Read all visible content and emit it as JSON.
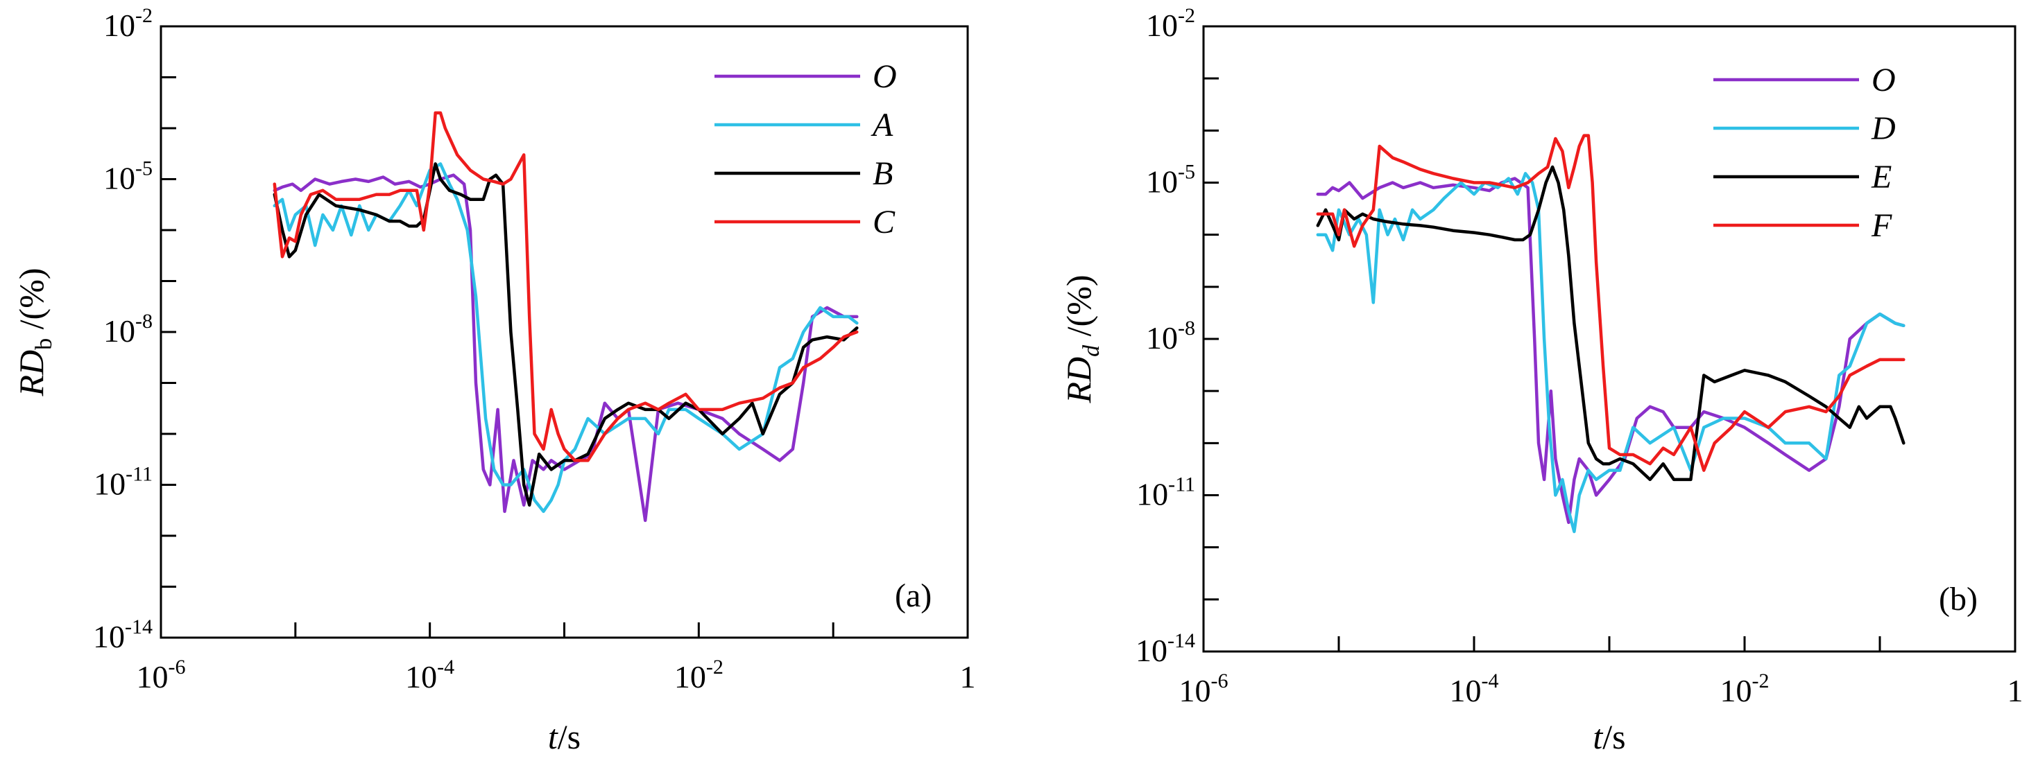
{
  "chart_data": [
    {
      "type": "line",
      "panel_label": "(a)",
      "xscale": "log",
      "yscale": "log",
      "xlim": [
        1e-06,
        1
      ],
      "ylim": [
        1e-14,
        0.01
      ],
      "xlabel": {
        "main": "t",
        "unit": "/s"
      },
      "ylabel": {
        "main": "RD",
        "sub": "b",
        "unit": " /(%)"
      },
      "xticks": [
        {
          "base": "10",
          "exp": "-6"
        },
        {
          "base": "10",
          "exp": "-4"
        },
        {
          "base": "10",
          "exp": "-2"
        },
        {
          "base": "1",
          "exp": ""
        }
      ],
      "yticks": [
        {
          "base": "10",
          "exp": "-14"
        },
        {
          "base": "10",
          "exp": "-11"
        },
        {
          "base": "10",
          "exp": "-8"
        },
        {
          "base": "10",
          "exp": "-5"
        },
        {
          "base": "10",
          "exp": "-2"
        }
      ],
      "legend_position": "top-right",
      "series": [
        {
          "name": "O",
          "color": "#8b2fc9",
          "x": [
            7e-06,
            8e-06,
            9.5e-06,
            1.1e-05,
            1.4e-05,
            1.8e-05,
            2.2e-05,
            2.8e-05,
            3.5e-05,
            4.5e-05,
            5.5e-05,
            7e-05,
            8.5e-05,
            0.0001,
            0.00012,
            0.00015,
            0.00018,
            0.0002,
            0.00022,
            0.00025,
            0.00028,
            0.00032,
            0.00036,
            0.00042,
            0.0005,
            0.00058,
            0.0007,
            0.0008,
            0.001,
            0.0013,
            0.0016,
            0.002,
            0.0025,
            0.003,
            0.004,
            0.005,
            0.007,
            0.01,
            0.015,
            0.02,
            0.03,
            0.04,
            0.05,
            0.06,
            0.07,
            0.09,
            0.12,
            0.15
          ],
          "y": [
            6e-06,
            7e-06,
            8e-06,
            6e-06,
            1e-05,
            8e-06,
            9e-06,
            1e-05,
            9e-06,
            1.1e-05,
            8e-06,
            9e-06,
            7e-06,
            8e-06,
            1e-05,
            1.2e-05,
            8e-06,
            1e-06,
            1e-09,
            2e-11,
            1e-11,
            3e-10,
            3e-12,
            3e-11,
            4e-12,
            3e-11,
            2e-11,
            3e-11,
            2e-11,
            3e-11,
            4e-11,
            4e-10,
            2e-10,
            3e-10,
            2e-12,
            3e-10,
            4e-10,
            3e-10,
            2e-10,
            1e-10,
            5e-11,
            3e-11,
            5e-11,
            1e-09,
            2e-08,
            3e-08,
            2e-08,
            2e-08
          ]
        },
        {
          "name": "A",
          "color": "#2ec0e6",
          "x": [
            7e-06,
            8e-06,
            9e-06,
            1e-05,
            1.2e-05,
            1.4e-05,
            1.6e-05,
            1.9e-05,
            2.2e-05,
            2.6e-05,
            3e-05,
            3.5e-05,
            4e-05,
            5e-05,
            6e-05,
            7e-05,
            8e-05,
            0.0001,
            0.00012,
            0.00014,
            0.00016,
            0.00019,
            0.00022,
            0.00026,
            0.0003,
            0.00035,
            0.0004,
            0.0005,
            0.0006,
            0.0007,
            0.0008,
            0.0009,
            0.001,
            0.0012,
            0.0015,
            0.002,
            0.003,
            0.004,
            0.005,
            0.006,
            0.008,
            0.01,
            0.015,
            0.02,
            0.03,
            0.04,
            0.05,
            0.06,
            0.08,
            0.1,
            0.13,
            0.15
          ],
          "y": [
            3e-06,
            4e-06,
            1e-06,
            2e-06,
            3e-06,
            5e-07,
            2e-06,
            1e-06,
            3e-06,
            8e-07,
            3e-06,
            1e-06,
            2e-06,
            1.5e-06,
            3e-06,
            6e-06,
            3e-06,
            1.5e-05,
            2e-05,
            8e-06,
            4e-06,
            1e-06,
            5e-08,
            2e-10,
            2e-11,
            1e-11,
            1e-11,
            2e-11,
            5e-12,
            3e-12,
            5e-12,
            1e-11,
            3e-11,
            5e-11,
            2e-10,
            1e-10,
            2e-10,
            2e-10,
            1e-10,
            3e-10,
            3e-10,
            2e-10,
            1e-10,
            5e-11,
            1e-10,
            2e-09,
            3e-09,
            1e-08,
            3e-08,
            2e-08,
            2e-08,
            1.5e-08
          ]
        },
        {
          "name": "B",
          "color": "#000000",
          "x": [
            7e-06,
            8e-06,
            9e-06,
            1e-05,
            1.2e-05,
            1.5e-05,
            2e-05,
            3e-05,
            4e-05,
            5e-05,
            6e-05,
            7e-05,
            8e-05,
            9e-05,
            0.0001,
            0.00011,
            0.00012,
            0.00014,
            0.00017,
            0.0002,
            0.00025,
            0.00028,
            0.00031,
            0.00035,
            0.0004,
            0.00045,
            0.0005,
            0.00055,
            0.00065,
            0.0008,
            0.001,
            0.0012,
            0.0015,
            0.002,
            0.0025,
            0.003,
            0.004,
            0.005,
            0.006,
            0.008,
            0.01,
            0.015,
            0.02,
            0.025,
            0.03,
            0.04,
            0.05,
            0.06,
            0.07,
            0.09,
            0.12,
            0.15
          ],
          "y": [
            5e-06,
            1e-06,
            3e-07,
            4e-07,
            2e-06,
            5e-06,
            3e-06,
            2.5e-06,
            2e-06,
            1.5e-06,
            1.5e-06,
            1.2e-06,
            1.2e-06,
            1.6e-06,
            6e-06,
            2e-05,
            1e-05,
            6e-06,
            5e-06,
            4e-06,
            4e-06,
            1e-05,
            1.2e-05,
            8e-06,
            1e-08,
            3e-10,
            1e-11,
            4e-12,
            4e-11,
            2e-11,
            3e-11,
            3e-11,
            4e-11,
            2e-10,
            3e-10,
            4e-10,
            3e-10,
            3e-10,
            2e-10,
            4e-10,
            3e-10,
            1e-10,
            2e-10,
            4e-10,
            1e-10,
            6e-10,
            1e-09,
            5e-09,
            7e-09,
            8e-09,
            7e-09,
            1.2e-08
          ]
        },
        {
          "name": "C",
          "color": "#ee1c1c",
          "x": [
            7e-06,
            8e-06,
            9e-06,
            1e-05,
            1.1e-05,
            1.3e-05,
            1.6e-05,
            2e-05,
            2.5e-05,
            3e-05,
            4e-05,
            5e-05,
            6e-05,
            8e-05,
            9e-05,
            0.0001,
            0.00011,
            0.00012,
            0.00013,
            0.00016,
            0.0002,
            0.00025,
            0.0003,
            0.00035,
            0.0004,
            0.0005,
            0.00055,
            0.0006,
            0.0007,
            0.0008,
            0.0009,
            0.001,
            0.0012,
            0.0015,
            0.002,
            0.0025,
            0.003,
            0.004,
            0.005,
            0.006,
            0.008,
            0.01,
            0.015,
            0.02,
            0.03,
            0.04,
            0.05,
            0.06,
            0.08,
            0.1,
            0.12,
            0.15
          ],
          "y": [
            8e-06,
            3e-07,
            7e-07,
            6e-07,
            2e-06,
            5e-06,
            6e-06,
            4e-06,
            4e-06,
            4e-06,
            5e-06,
            5e-06,
            6e-06,
            6e-06,
            1e-06,
            8e-06,
            0.0002,
            0.0002,
            0.0001,
            3e-05,
            1.5e-05,
            1e-05,
            9e-06,
            8e-06,
            1e-05,
            3e-05,
            2e-08,
            1e-10,
            5e-11,
            3e-10,
            1e-10,
            5e-11,
            3e-11,
            3e-11,
            1e-10,
            2e-10,
            3e-10,
            4e-10,
            3e-10,
            4e-10,
            6e-10,
            3e-10,
            3e-10,
            4e-10,
            5e-10,
            8e-10,
            1e-09,
            2e-09,
            3e-09,
            5e-09,
            8e-09,
            1e-08
          ]
        }
      ]
    },
    {
      "type": "line",
      "panel_label": "(b)",
      "xscale": "log",
      "yscale": "log",
      "xlim": [
        1e-06,
        1
      ],
      "ylim": [
        1e-14,
        0.01
      ],
      "xlabel": {
        "main": "t",
        "unit": "/s"
      },
      "ylabel": {
        "main": "RD",
        "sub": "d",
        "unit": " /(%)"
      },
      "xticks": [
        {
          "base": "10",
          "exp": "-6"
        },
        {
          "base": "10",
          "exp": "-4"
        },
        {
          "base": "10",
          "exp": "-2"
        },
        {
          "base": "1",
          "exp": ""
        }
      ],
      "yticks": [
        {
          "base": "10",
          "exp": "-14"
        },
        {
          "base": "10",
          "exp": "-11"
        },
        {
          "base": "10",
          "exp": "-8"
        },
        {
          "base": "10",
          "exp": "-5"
        },
        {
          "base": "10",
          "exp": "-2"
        }
      ],
      "legend_position": "top-right",
      "series": [
        {
          "name": "O",
          "color": "#8b2fc9",
          "x": [
            7e-06,
            8e-06,
            9e-06,
            1e-05,
            1.2e-05,
            1.5e-05,
            2e-05,
            2.5e-05,
            3e-05,
            4e-05,
            5e-05,
            7e-05,
            0.0001,
            0.00013,
            0.00016,
            0.0002,
            0.00025,
            0.00028,
            0.0003,
            0.00033,
            0.00037,
            0.0004,
            0.00045,
            0.0005,
            0.00055,
            0.0006,
            0.0007,
            0.0008,
            0.001,
            0.0013,
            0.0016,
            0.002,
            0.0025,
            0.003,
            0.004,
            0.005,
            0.007,
            0.01,
            0.015,
            0.02,
            0.03,
            0.04,
            0.05,
            0.06,
            0.08,
            0.1,
            0.13,
            0.15
          ],
          "y": [
            6e-06,
            6e-06,
            8e-06,
            7e-06,
            1e-05,
            5e-06,
            8e-06,
            1e-05,
            8e-06,
            1e-05,
            8e-06,
            9e-06,
            8e-06,
            7e-06,
            1e-05,
            1.2e-05,
            8e-06,
            1e-08,
            1e-10,
            2e-11,
            1e-09,
            5e-11,
            1e-11,
            3e-12,
            2e-11,
            5e-11,
            3e-11,
            1e-11,
            2e-11,
            5e-11,
            3e-10,
            5e-10,
            4e-10,
            2e-10,
            2e-10,
            4e-10,
            3e-10,
            2e-10,
            1e-10,
            6e-11,
            3e-11,
            5e-11,
            5e-10,
            1e-08,
            2e-08,
            3e-08,
            2e-08,
            1.8e-08
          ]
        },
        {
          "name": "D",
          "color": "#2ec0e6",
          "x": [
            7e-06,
            8e-06,
            9e-06,
            1e-05,
            1.2e-05,
            1.4e-05,
            1.6e-05,
            1.8e-05,
            2e-05,
            2.3e-05,
            2.6e-05,
            3e-05,
            3.5e-05,
            4e-05,
            5e-05,
            6e-05,
            8e-05,
            0.0001,
            0.00012,
            0.00015,
            0.00018,
            0.00021,
            0.00024,
            0.00027,
            0.0003,
            0.00033,
            0.00036,
            0.0004,
            0.00045,
            0.0005,
            0.00055,
            0.0006,
            0.0007,
            0.0008,
            0.001,
            0.0012,
            0.0015,
            0.002,
            0.003,
            0.004,
            0.005,
            0.007,
            0.01,
            0.015,
            0.02,
            0.03,
            0.04,
            0.05,
            0.06,
            0.08,
            0.1,
            0.13,
            0.15
          ],
          "y": [
            1e-06,
            1e-06,
            5e-07,
            3e-06,
            1e-06,
            2e-06,
            1e-06,
            5e-08,
            3e-06,
            1e-06,
            2e-06,
            8e-07,
            3e-06,
            2e-06,
            3e-06,
            5e-06,
            1e-05,
            6e-06,
            1e-05,
            8e-06,
            1.2e-05,
            6e-06,
            1.5e-05,
            1e-05,
            3e-06,
            1e-08,
            2e-10,
            1e-11,
            2e-11,
            5e-12,
            2e-12,
            1e-11,
            3e-11,
            2e-11,
            3e-11,
            3e-11,
            2e-10,
            1e-10,
            2e-10,
            3e-11,
            2e-10,
            3e-10,
            3e-10,
            2e-10,
            1e-10,
            1e-10,
            5e-11,
            2e-09,
            3e-09,
            2e-08,
            3e-08,
            2e-08,
            1.8e-08
          ]
        },
        {
          "name": "E",
          "color": "#000000",
          "x": [
            7e-06,
            8e-06,
            9e-06,
            1e-05,
            1.1e-05,
            1.3e-05,
            1.5e-05,
            1.8e-05,
            2.2e-05,
            3e-05,
            4e-05,
            5e-05,
            7e-05,
            0.0001,
            0.00013,
            0.00016,
            0.0002,
            0.00023,
            0.00026,
            0.0003,
            0.00034,
            0.00038,
            0.00042,
            0.00046,
            0.0005,
            0.00055,
            0.0006,
            0.0007,
            0.0008,
            0.0009,
            0.001,
            0.0012,
            0.0015,
            0.002,
            0.0025,
            0.003,
            0.004,
            0.005,
            0.006,
            0.008,
            0.01,
            0.015,
            0.02,
            0.03,
            0.04,
            0.05,
            0.06,
            0.07,
            0.08,
            0.1,
            0.12,
            0.13,
            0.15
          ],
          "y": [
            1.5e-06,
            3e-06,
            1.5e-06,
            8e-07,
            3e-06,
            2e-06,
            2.5e-06,
            2e-06,
            1.8e-06,
            1.6e-06,
            1.5e-06,
            1.4e-06,
            1.2e-06,
            1.1e-06,
            1e-06,
            9e-07,
            8e-07,
            8e-07,
            1e-06,
            3e-06,
            1e-05,
            2e-05,
            1e-05,
            3e-06,
            4e-07,
            2e-08,
            3e-09,
            1e-10,
            5e-11,
            4e-11,
            4e-11,
            5e-11,
            4e-11,
            2e-11,
            4e-11,
            2e-11,
            2e-11,
            2e-09,
            1.5e-09,
            2e-09,
            2.5e-09,
            2e-09,
            1.5e-09,
            8e-10,
            5e-10,
            3e-10,
            2e-10,
            5e-10,
            3e-10,
            5e-10,
            5e-10,
            3e-10,
            1e-10
          ]
        },
        {
          "name": "F",
          "color": "#ee1c1c",
          "x": [
            7e-06,
            8e-06,
            9e-06,
            1e-05,
            1.1e-05,
            1.3e-05,
            1.5e-05,
            1.8e-05,
            2e-05,
            2.5e-05,
            3e-05,
            4e-05,
            5e-05,
            7e-05,
            0.0001,
            0.00013,
            0.00016,
            0.0002,
            0.00025,
            0.0003,
            0.00035,
            0.0004,
            0.00045,
            0.0005,
            0.00055,
            0.0006,
            0.00065,
            0.0007,
            0.00075,
            0.0008,
            0.0009,
            0.001,
            0.0012,
            0.0015,
            0.002,
            0.0025,
            0.003,
            0.004,
            0.005,
            0.006,
            0.008,
            0.01,
            0.015,
            0.02,
            0.03,
            0.04,
            0.05,
            0.06,
            0.08,
            0.1,
            0.12,
            0.15
          ],
          "y": [
            2.5e-06,
            2.5e-06,
            2.5e-06,
            1e-06,
            3e-06,
            6e-07,
            1.5e-06,
            3e-06,
            5e-05,
            3e-05,
            2.5e-05,
            1.8e-05,
            1.5e-05,
            1.2e-05,
            1e-05,
            1e-05,
            9e-06,
            8e-06,
            1e-05,
            1.5e-05,
            2e-05,
            7e-05,
            4e-05,
            8e-06,
            2e-05,
            5e-05,
            8e-05,
            8e-05,
            1e-05,
            3e-07,
            3e-09,
            8e-11,
            6e-11,
            6e-11,
            4e-11,
            8e-11,
            6e-11,
            2e-10,
            3e-11,
            1e-10,
            2e-10,
            4e-10,
            2e-10,
            4e-10,
            5e-10,
            4e-10,
            8e-10,
            2e-09,
            3e-09,
            4e-09,
            4e-09,
            4e-09
          ]
        }
      ]
    }
  ]
}
